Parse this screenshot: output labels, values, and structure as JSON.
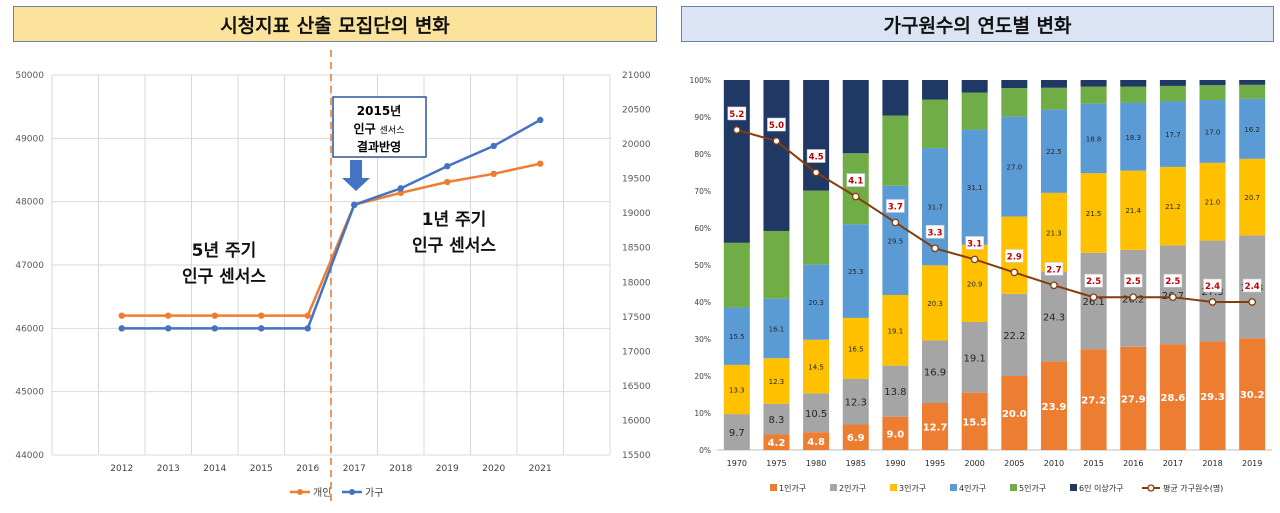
{
  "panels": {
    "left_title": "시청지표 산출 모집단의 변화",
    "right_title": "가구원수의 연도별 변화"
  },
  "chart_data": [
    {
      "type": "line",
      "title": "시청지표 산출 모집단의 변화",
      "categories": [
        "2012",
        "2013",
        "2014",
        "2015",
        "2016",
        "2017",
        "2018",
        "2019",
        "2020",
        "2021"
      ],
      "y_left": {
        "ylim": [
          44000,
          50000
        ],
        "ticks": [
          "44000",
          "45000",
          "46000",
          "47000",
          "48000",
          "49000",
          "50000"
        ]
      },
      "y_right": {
        "ylim": [
          15500,
          21000
        ],
        "ticks": [
          "15500",
          "16000",
          "16500",
          "17000",
          "17500",
          "18000",
          "18500",
          "19000",
          "19500",
          "20000",
          "20500",
          "21000"
        ]
      },
      "series": [
        {
          "name": "개인",
          "axis": "left",
          "color": "#ed7d31",
          "values": [
            46200,
            46200,
            46200,
            46200,
            46200,
            47950,
            48140,
            48310,
            48440,
            48600
          ]
        },
        {
          "name": "가구",
          "axis": "left",
          "color": "#4472c4",
          "values": [
            46000,
            46000,
            46000,
            46000,
            46000,
            47950,
            48210,
            48560,
            48880,
            49290
          ]
        }
      ],
      "annotations": {
        "callout_line1": "2015년",
        "callout_line2a": "인구",
        "callout_line2b": "센서스",
        "callout_line3": "결과반영",
        "left_period_line1": "5년 주기",
        "left_period_line2": "인구 센서스",
        "right_period_line1": "1년 주기",
        "right_period_line2": "인구 센서스"
      }
    },
    {
      "type": "stacked-bar",
      "title": "가구원수의 연도별 변화",
      "categories": [
        "1970",
        "1975",
        "1980",
        "1985",
        "1990",
        "1995",
        "2000",
        "2005",
        "2010",
        "2015",
        "2016",
        "2017",
        "2018",
        "2019"
      ],
      "y_ticks": [
        "0%",
        "10%",
        "20%",
        "30%",
        "40%",
        "50%",
        "60%",
        "70%",
        "80%",
        "90%",
        "100%"
      ],
      "ylim": [
        0,
        100
      ],
      "series": [
        {
          "name": "1인가구",
          "color": "#ed7d31",
          "values": [
            0,
            4.2,
            4.8,
            6.9,
            9.0,
            12.7,
            15.5,
            20.0,
            23.9,
            27.2,
            27.9,
            28.6,
            29.3,
            30.2
          ],
          "labels": [
            "",
            "4.2",
            "4.8",
            "6.9",
            "9.0",
            "12.7",
            "15.5",
            "20.0",
            "23.9",
            "27.2",
            "27.9",
            "28.6",
            "29.3",
            "30.2"
          ]
        },
        {
          "name": "2인가구",
          "color": "#a5a5a5",
          "values": [
            9.7,
            8.3,
            10.5,
            12.3,
            13.8,
            16.9,
            19.1,
            22.2,
            24.3,
            26.1,
            26.2,
            26.7,
            27.3,
            27.8
          ],
          "labels": [
            "9.7",
            "8.3",
            "10.5",
            "12.3",
            "13.8",
            "16.9",
            "19.1",
            "22.2",
            "24.3",
            "26.1",
            "26.2",
            "26.7",
            "27.3",
            "27.8"
          ]
        },
        {
          "name": "3인가구",
          "color": "#ffc000",
          "values": [
            13.3,
            12.3,
            14.5,
            16.5,
            19.1,
            20.3,
            20.9,
            20.9,
            21.3,
            21.5,
            21.4,
            21.2,
            21.0,
            20.7
          ],
          "labels": [
            "13.3",
            "12.3",
            "14.5",
            "16.5",
            "19.1",
            "20.3",
            "20.9",
            "20.9",
            "21.3",
            "21.5",
            "21.4",
            "21.2",
            "21.0",
            "20.7"
          ]
        },
        {
          "name": "4인가구",
          "color": "#5b9bd5",
          "values": [
            15.5,
            16.1,
            20.3,
            25.3,
            29.5,
            31.7,
            31.1,
            27.0,
            22.5,
            18.8,
            18.3,
            17.7,
            17.0,
            16.2
          ],
          "labels": [
            "15.5",
            "16.1",
            "20.3",
            "25.3",
            "29.5",
            "31.7",
            "31.1",
            "27.0",
            "22.5",
            "18.8",
            "18.3",
            "17.7",
            "17.0",
            "16.2"
          ]
        },
        {
          "name": "5인가구",
          "color": "#70ad47",
          "values": [
            17.5,
            18.3,
            20.0,
            19.2,
            19.0,
            13.1,
            10.0,
            7.7,
            5.9,
            4.6,
            4.4,
            4.2,
            4.0,
            3.8
          ]
        },
        {
          "name": "6인 이상가구",
          "color": "#203864",
          "values": [
            44.0,
            40.8,
            29.9,
            19.8,
            9.6,
            5.3,
            3.4,
            2.2,
            2.1,
            1.8,
            1.8,
            1.6,
            1.4,
            1.3
          ]
        }
      ],
      "line_series": {
        "name": "평균 가구원수(명)",
        "color": "#843c0c",
        "values": [
          86.5,
          83.5,
          75.0,
          68.5,
          61.5,
          54.5,
          51.5,
          48.0,
          44.5,
          41.3,
          41.3,
          41.3,
          40.0,
          40.0
        ],
        "labels": [
          "5.2",
          "5.0",
          "4.5",
          "4.1",
          "3.7",
          "3.3",
          "3.1",
          "2.9",
          "2.7",
          "2.5",
          "2.5",
          "2.5",
          "2.4",
          "2.4"
        ]
      }
    }
  ]
}
